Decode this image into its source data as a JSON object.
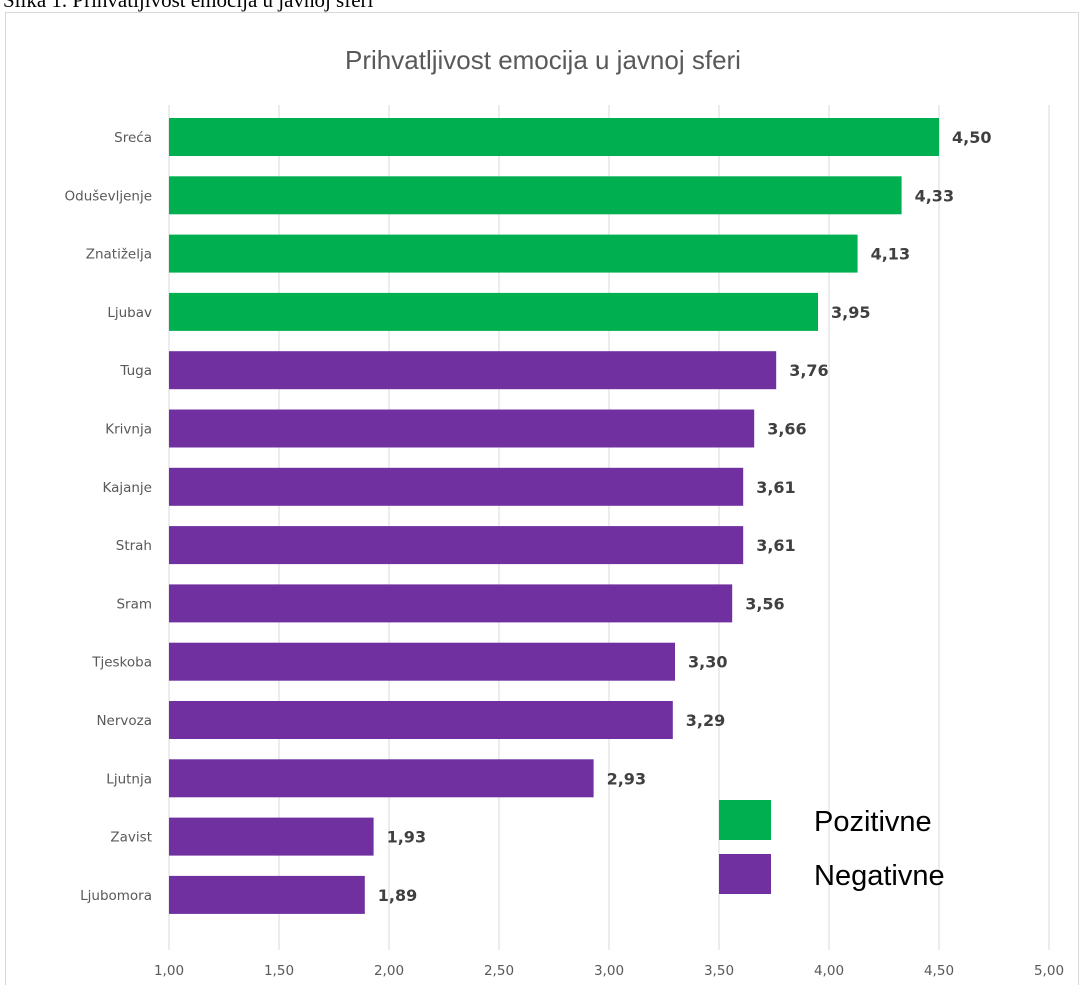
{
  "caption": "Slika 1. Prihvatljivost emocija u javnoj sferi",
  "colors": {
    "positive": "#00b050",
    "negative": "#7030a0"
  },
  "chart_data": {
    "type": "bar",
    "orientation": "horizontal",
    "title": "Prihvatljivost emocija u javnoj sferi",
    "categories": [
      "Sreća",
      "Oduševljenje",
      "Znatiželja",
      "Ljubav",
      "Tuga",
      "Krivnja",
      "Kajanje",
      "Strah",
      "Sram",
      "Tjeskoba",
      "Nervoza",
      "Ljutnja",
      "Zavist",
      "Ljubomora"
    ],
    "values": [
      4.5,
      4.33,
      4.13,
      3.95,
      3.76,
      3.66,
      3.61,
      3.61,
      3.56,
      3.3,
      3.29,
      2.93,
      1.93,
      1.89
    ],
    "value_labels": [
      "4,50",
      "4,33",
      "4,13",
      "3,95",
      "3,76",
      "3,66",
      "3,61",
      "3,61",
      "3,56",
      "3,30",
      "3,29",
      "2,93",
      "1,93",
      "1,89"
    ],
    "groups": [
      "Pozitivne",
      "Pozitivne",
      "Pozitivne",
      "Pozitivne",
      "Negativne",
      "Negativne",
      "Negativne",
      "Negativne",
      "Negativne",
      "Negativne",
      "Negativne",
      "Negativne",
      "Negativne",
      "Negativne"
    ],
    "xlim": [
      1.0,
      5.0
    ],
    "xticks": [
      1.0,
      1.5,
      2.0,
      2.5,
      3.0,
      3.5,
      4.0,
      4.5,
      5.0
    ],
    "xtick_labels": [
      "1,00",
      "1,50",
      "2,00",
      "2,50",
      "3,00",
      "3,50",
      "4,00",
      "4,50",
      "5,00"
    ],
    "grid": "vertical",
    "legend": {
      "placement": "bottom-right",
      "entries": [
        {
          "label": "Pozitivne",
          "color": "#00b050"
        },
        {
          "label": "Negativne",
          "color": "#7030a0"
        }
      ]
    }
  }
}
